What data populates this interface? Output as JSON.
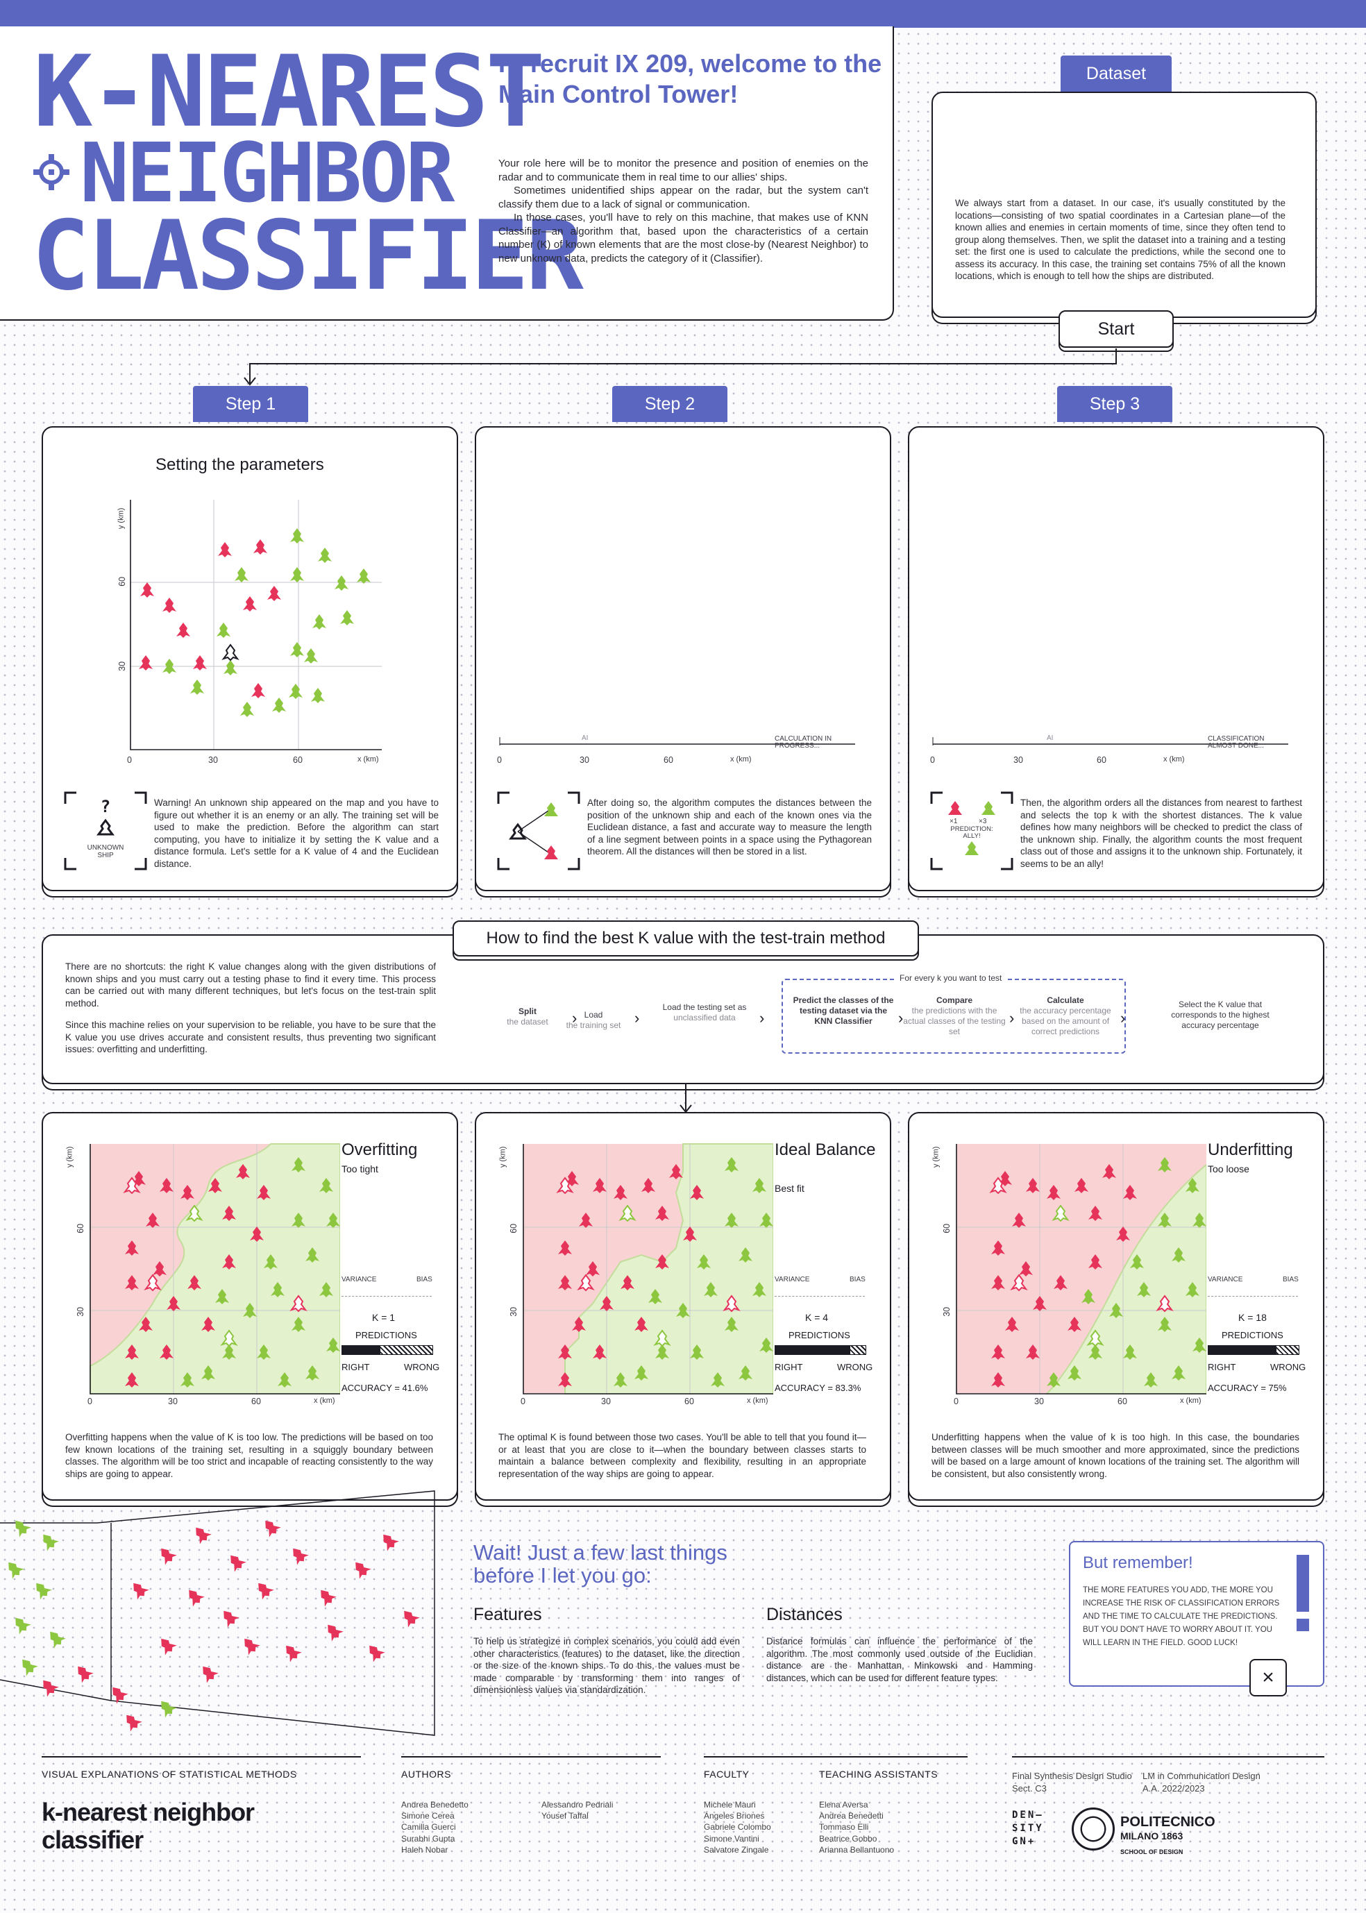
{
  "title": {
    "line1": "K-NEAREST",
    "line2": "NEIGHBOR",
    "line3": "CLASSIFIER"
  },
  "welcome": {
    "heading": "Hi recruit IX 209, welcome to the Main Control Tower!",
    "p1": "Your role here will be to monitor the presence and position of enemies on the radar and to communicate them in real time to our allies' ships.",
    "p2": "Sometimes unidentified ships appear on the radar, but the system can't classify them due to a lack of signal or communication.",
    "p3": "In those cases, you'll have to rely on this machine, that makes use of KNN Classifier—an algorithm that, based upon the characteristics of a certain number (K) of known elements that are the most close-by (Nearest Neighbor) to new unknown data, predicts the category of it (Classifier)."
  },
  "dataset": {
    "tab": "Dataset",
    "text": "We always start from a dataset. In our case, it's usually constituted by the locations—consisting of two spatial coordinates in a Cartesian plane—of the known allies and enemies in certain moments of time, since they often tend to group along themselves. Then, we split the dataset into a training and a testing set: the first one is used to calculate the predictions, while the second one to assess its accuracy. In this case, the training set contains 75% of all the known locations, which is enough to tell how the ships are distributed.",
    "start": "Start"
  },
  "steps": [
    {
      "tab": "Step 1",
      "title": "Setting the parameters",
      "icon_label": "UNKNOWN SHIP",
      "text": "Warning! An unknown ship appeared on the map and you have to figure out whether it is an enemy or an ally. The training set will be used to make the prediction. Before the algorithm can start computing, you have to initialize it by setting the K value and a distance formula. Let's settle for a K value of 4 and the Euclidean distance."
    },
    {
      "tab": "Step 2",
      "status": "CALCULATION IN PROGRESS...",
      "text": "After doing so, the algorithm computes the distances between the position of the unknown ship and each of the known ones via the Euclidean distance, a fast and accurate way to measure the length of a line segment between points in a space using the Pythagorean theorem. All the distances will then be stored in a list."
    },
    {
      "tab": "Step 3",
      "status": "CLASSIFICATION ALMOST DONE...",
      "icon_label": "PREDICTION: ALLY!",
      "icon_x1": "×1",
      "icon_x3": "×3",
      "text": "Then, the algorithm orders all the distances from nearest to farthest and selects the top k with the shortest distances. The k value defines how many neighbors will be checked to predict the class of the unknown ship. Finally, the algorithm counts the most frequent class out of those and assigns it to the unknown ship. Fortunately, it seems to be an ally!"
    }
  ],
  "axes": {
    "ylabel": "y (km)",
    "xlabel": "x (km)",
    "xticks": [
      "0",
      "30",
      "60"
    ],
    "yticks": [
      "60",
      "30"
    ],
    "marker": "AI"
  },
  "testtrain": {
    "title": "How to find the best K value with the test-train method",
    "p1": "There are no shortcuts: the right K value changes along with the given distributions of known ships and you must carry out a testing phase to find it every time. This process can be carried out with many different techniques, but let's focus on the test-train split method.",
    "p2": "Since this machine relies on your supervision to be reliable, you have to be sure that the K value you use drives accurate and consistent results, thus preventing two significant issues: overfitting and underfitting.",
    "loop_label": "For every k you want to test",
    "flow": [
      {
        "a": "Split",
        "b": "the dataset"
      },
      {
        "a": "Load",
        "b": "the training set"
      },
      {
        "a": "Load the testing set as",
        "b": "unclassified data"
      },
      {
        "a": "Predict the classes of the testing dataset via the KNN Classifier",
        "b": ""
      },
      {
        "a": "Compare",
        "b": "the predictions with the actual classes of the testing set"
      },
      {
        "a": "Calculate",
        "b": "the accuracy percentage based on the amount of correct predictions"
      },
      {
        "a": "Select the K value that corresponds to the highest accuracy percentage",
        "b": ""
      }
    ]
  },
  "fits": [
    {
      "title": "Overfitting",
      "subtitle": "Too tight",
      "k": "K = 1",
      "accuracy": "ACCURACY = 41.6%",
      "right_frac": 0.42,
      "text": "Overfitting happens when the value of K is too low. The predictions will be based on too few known locations of the training set, resulting in a squiggly boundary between classes. The algorithm will be too strict and incapable of reacting consistently to the way ships are going to appear."
    },
    {
      "title": "Ideal Balance",
      "subtitle": "Best fit",
      "k": "K = 4",
      "accuracy": "ACCURACY = 83.3%",
      "right_frac": 0.83,
      "text": "The optimal K is found between those two cases. You'll be able to tell that you found it—or at least that you are close to it—when the boundary between classes starts to maintain a balance between complexity and flexibility, resulting in an appropriate representation of the way ships are going to appear."
    },
    {
      "title": "Underfitting",
      "subtitle": "Too loose",
      "k": "K = 18",
      "accuracy": "ACCURACY = 75%",
      "right_frac": 0.75,
      "text": "Underfitting happens when the value of k is too high. In this case, the boundaries between classes will be much smoother and more approximated, since the predictions will be based on a large amount of known locations of the training set. The algorithm will be consistent, but also consistently wrong."
    }
  ],
  "fitlabels": {
    "variance": "VARIANCE",
    "bias": "BIAS",
    "predictions": "PREDICTIONS",
    "right": "RIGHT",
    "wrong": "WRONG"
  },
  "wait": {
    "heading": "Wait! Just a few last things before I let you go:"
  },
  "features": {
    "title": "Features",
    "text": "To help us strategize in complex scenarios, you could add even other characteristics (features) to the dataset, like the direction or the size of the known ships. To do this, the values must be made comparable by transforming them into ranges of dimensionless values via standardization."
  },
  "distances": {
    "title": "Distances",
    "text": "Distance formulas can influence the performance of the algorithm. The most commonly used outside of the Euclidian distance are the Manhattan, Minkowski and Hamming distances, which can be used for different feature types."
  },
  "remember": {
    "title": "But remember!",
    "text": "THE MORE FEATURES YOU ADD, THE MORE YOU INCREASE THE RISK OF CLASSIFICATION ERRORS AND THE TIME TO CALCULATE THE PREDICTIONS. BUT YOU DON'T HAVE TO WORRY ABOUT IT. YOU WILL LEARN IN THE FIELD. GOOD LUCK!",
    "close": "×"
  },
  "footer": {
    "series": "VISUAL EXPLANATIONS OF STATISTICAL METHODS",
    "name1": "k-nearest neighbor",
    "name2": "classifier",
    "authors_h": "AUTHORS",
    "authors_a": [
      "Andrea Benedetto",
      "Simone Cerea",
      "Camilla Guerci",
      "Surabhi Gupta",
      "Haleh Nobar"
    ],
    "authors_b": [
      "Alessandro Pedriali",
      "Yousef Taffal"
    ],
    "faculty_h": "FACULTY",
    "faculty": [
      "Michele Mauri",
      "Ángeles Briones",
      "Gabriele Colombo",
      "Simone Vantini",
      "Salvatore Zingale"
    ],
    "ta_h": "TEACHING ASSISTANTS",
    "ta": [
      "Elena Aversa",
      "Andrea Benedetti",
      "Tommaso Elli",
      "Beatrice Gobbo",
      "Arianna Bellantuono"
    ],
    "studio1": "Final Synthesis Design Studio",
    "studio2": "Sect. C3",
    "course1": "LM in Communication Design",
    "course2": "A.A. 2022/2023",
    "density": "DEN– SITY GN+",
    "poli1": "POLITECNICO",
    "poli2": "MILANO 1863",
    "poli3": "SCHOOL OF DESIGN"
  },
  "colors": {
    "accent": "#5b66c0",
    "enemy": "#e6335a",
    "ally": "#8dc63f",
    "enemy_zone": "#f9d3d3",
    "ally_zone": "#e3f1cd"
  }
}
